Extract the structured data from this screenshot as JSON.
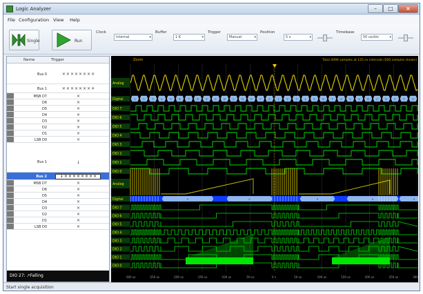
{
  "window": {
    "title": "Logic Analyzer",
    "close": "×",
    "max": "□",
    "min": "–"
  },
  "menu": [
    "File",
    "Configuration",
    "View",
    "Help"
  ],
  "toolbar": {
    "single_label": "Single",
    "run_label": "Run",
    "controls": [
      {
        "label": "Clock",
        "value": "Internal"
      },
      {
        "label": "Buffer",
        "value": "1 K"
      },
      {
        "label": "Trigger",
        "value": "Manual"
      },
      {
        "label": "Position",
        "value": "5 s"
      },
      {
        "label": "Timebase",
        "value": "50 us/div"
      }
    ]
  },
  "channels": {
    "header": {
      "name": "Name",
      "trigger": "Trigger"
    },
    "rows": [
      {
        "name": "Bus 0",
        "trigger": "××××××××",
        "type": "bus"
      },
      {
        "name": "Bus 1",
        "trigger": "××××××××",
        "type": "bus"
      },
      {
        "name": "MSB D7",
        "trigger": "×"
      },
      {
        "name": "D6",
        "trigger": "×"
      },
      {
        "name": "D5",
        "trigger": "×"
      },
      {
        "name": "D4",
        "trigger": "×"
      },
      {
        "name": "D3",
        "trigger": "×"
      },
      {
        "name": "D2",
        "trigger": "×"
      },
      {
        "name": "D1",
        "trigger": "×"
      },
      {
        "name": "LSB D0",
        "trigger": "×"
      },
      {
        "name": "Bus 1",
        "trigger": "↓",
        "type": "bus"
      },
      {
        "name": "Bus 2",
        "trigger": "↓××××××××",
        "type": "bus",
        "selected": true
      },
      {
        "name": "MSB D7",
        "trigger": "×"
      },
      {
        "name": "D6",
        "trigger": "×"
      },
      {
        "name": "D5",
        "trigger": "×"
      },
      {
        "name": "D4",
        "trigger": "×"
      },
      {
        "name": "D3",
        "trigger": "×"
      },
      {
        "name": "D2",
        "trigger": "×"
      },
      {
        "name": "D1",
        "trigger": "×"
      },
      {
        "name": "LSB D0",
        "trigger": "×"
      }
    ],
    "status": "DIO 27: ↗Falling"
  },
  "scope": {
    "zoom_label": "Zoom",
    "info": "Total 4096 samples at 125 ns intervals (500 samples shown)",
    "track_labels": {
      "analog": "Analog",
      "digital": "Digital",
      "dio": [
        "DIO 7",
        "DIO 6",
        "DIO 5",
        "DIO 4",
        "DIO 3",
        "DIO 2",
        "DIO 1",
        "DIO 0"
      ]
    },
    "bus_values": [
      "1",
      "2",
      "3",
      "4",
      "5",
      "6",
      "7",
      "8",
      "9",
      "A",
      "B",
      "C",
      "D",
      "E",
      "F",
      "0"
    ],
    "bus_hex_value": "0",
    "time_labels": [
      "-300 us",
      "-250 us",
      "-200 us",
      "-150 us",
      "-100 us",
      "-50 us",
      "0 s",
      "50 us",
      "100 us",
      "150 us",
      "200 us",
      "250 us",
      "300 us"
    ],
    "colors": {
      "trace": "#00e600",
      "trace_dim": "#00c800",
      "analog": "#d6c600",
      "bus_fill": "#8fb8e8",
      "bus_sel": "#0c3cff",
      "grid": "#3a3a3a",
      "label_bg": "#0a3a0a",
      "label_text": "#f0e000",
      "info_text": "#e0b000",
      "cursor": "#ffd000"
    }
  },
  "statusbar": {
    "text": "Start single acquisition"
  }
}
